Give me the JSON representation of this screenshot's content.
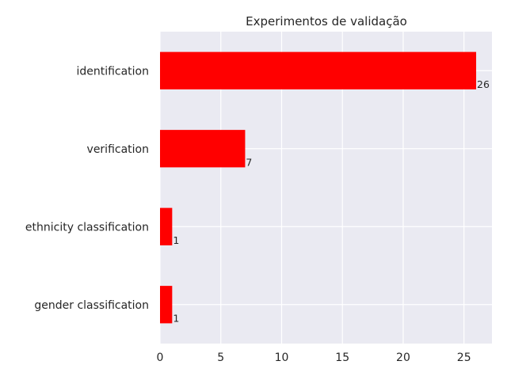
{
  "chart_data": {
    "type": "bar",
    "orientation": "horizontal",
    "title": "Experimentos de validação",
    "categories": [
      "identification",
      "verification",
      "ethnicity classification",
      "gender classification"
    ],
    "values": [
      26,
      7,
      1,
      1
    ],
    "xlabel": "",
    "ylabel": "",
    "xlim": [
      0,
      27.3
    ],
    "xticks": [
      0,
      5,
      10,
      15,
      20,
      25
    ],
    "grid": true,
    "bar_color": "#ff0000",
    "background_color": "#eaeaf2",
    "data_labels": [
      "26",
      "7",
      "1",
      "1"
    ]
  }
}
